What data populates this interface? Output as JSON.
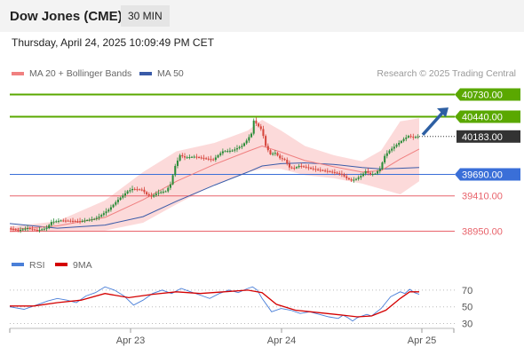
{
  "header": {
    "instrument": "Dow Jones (CME)",
    "timeframe": "30 MIN"
  },
  "datetime": "Thursday, April 24, 2025 10:09:49 PM CET",
  "colors": {
    "bullish": "#2a8c38",
    "bearish": "#d6453b",
    "ma20": "#f08080",
    "bands_fill": "#fcdada",
    "ma50": "#3a5ba8",
    "resistance": "#5aa800",
    "support_blue": "#3a6fd8",
    "support_red": "#e8636b",
    "rsi": "#4a7fd8",
    "rsi_ma": "#d40000",
    "arrow": "#2d5fa3"
  },
  "chart_data": [
    {
      "type": "candlestick",
      "title": "Dow Jones (CME)",
      "attribution": "Research © 2025 Trading Central",
      "legend": [
        {
          "name": "MA 20 + Bollinger Bands",
          "color": "#f08080"
        },
        {
          "name": "MA 50",
          "color": "#3a5ba8"
        }
      ],
      "x_ticks": [
        "Apr 23",
        "Apr 24",
        "Apr 25"
      ],
      "ylim": [
        38760,
        40920
      ],
      "levels": [
        {
          "value": 40730,
          "label": "40730.00",
          "kind": "resistance",
          "color": "#5aa800"
        },
        {
          "value": 40440,
          "label": "40440.00",
          "kind": "resistance",
          "color": "#5aa800"
        },
        {
          "value": 40183,
          "label": "40183.00",
          "kind": "last-price",
          "color": "#333333"
        },
        {
          "value": 39690,
          "label": "39690.00",
          "kind": "pivot",
          "color": "#3a6fd8"
        },
        {
          "value": 39410,
          "label": "39410.00",
          "kind": "support",
          "color": "#e8636b"
        },
        {
          "value": 38950,
          "label": "38950.00",
          "kind": "support",
          "color": "#e8636b"
        }
      ],
      "price_points": [
        [
          0,
          38990
        ],
        [
          4,
          38960
        ],
        [
          8,
          38990
        ],
        [
          12,
          38960
        ],
        [
          16,
          38990
        ],
        [
          18,
          39070
        ],
        [
          22,
          39090
        ],
        [
          30,
          39080
        ],
        [
          36,
          39110
        ],
        [
          38,
          39140
        ],
        [
          42,
          39230
        ],
        [
          46,
          39360
        ],
        [
          50,
          39470
        ],
        [
          52,
          39500
        ],
        [
          56,
          39490
        ],
        [
          58,
          39430
        ],
        [
          60,
          39400
        ],
        [
          62,
          39440
        ],
        [
          64,
          39460
        ],
        [
          66,
          39470
        ],
        [
          68,
          39560
        ],
        [
          70,
          39800
        ],
        [
          72,
          39940
        ],
        [
          74,
          39910
        ],
        [
          78,
          39920
        ],
        [
          82,
          39900
        ],
        [
          86,
          39880
        ],
        [
          88,
          39940
        ],
        [
          90,
          39990
        ],
        [
          94,
          40000
        ],
        [
          96,
          40030
        ],
        [
          98,
          40060
        ],
        [
          100,
          40130
        ],
        [
          102,
          40220
        ],
        [
          103,
          40390
        ],
        [
          104,
          40350
        ],
        [
          106,
          40280
        ],
        [
          107,
          40190
        ],
        [
          108,
          40060
        ],
        [
          110,
          39950
        ],
        [
          112,
          39970
        ],
        [
          114,
          39900
        ],
        [
          116,
          39880
        ],
        [
          118,
          39780
        ],
        [
          120,
          39770
        ],
        [
          122,
          39800
        ],
        [
          124,
          39790
        ],
        [
          128,
          39760
        ],
        [
          132,
          39740
        ],
        [
          136,
          39720
        ],
        [
          140,
          39690
        ],
        [
          142,
          39640
        ],
        [
          144,
          39610
        ],
        [
          146,
          39630
        ],
        [
          148,
          39670
        ],
        [
          150,
          39730
        ],
        [
          152,
          39690
        ],
        [
          154,
          39700
        ],
        [
          156,
          39760
        ],
        [
          158,
          39930
        ],
        [
          160,
          40000
        ],
        [
          162,
          40050
        ],
        [
          164,
          40100
        ],
        [
          166,
          40150
        ],
        [
          168,
          40190
        ],
        [
          170,
          40170
        ],
        [
          172,
          40183
        ]
      ],
      "ma20_points": [
        [
          0,
          38970
        ],
        [
          20,
          39020
        ],
        [
          40,
          39130
        ],
        [
          56,
          39360
        ],
        [
          70,
          39600
        ],
        [
          86,
          39820
        ],
        [
          100,
          39990
        ],
        [
          106,
          40060
        ],
        [
          114,
          39980
        ],
        [
          124,
          39870
        ],
        [
          136,
          39790
        ],
        [
          148,
          39720
        ],
        [
          156,
          39740
        ],
        [
          164,
          39890
        ],
        [
          172,
          40020
        ]
      ],
      "bollinger_upper": [
        [
          0,
          39010
        ],
        [
          20,
          39080
        ],
        [
          40,
          39350
        ],
        [
          56,
          39720
        ],
        [
          70,
          39990
        ],
        [
          86,
          40100
        ],
        [
          100,
          40260
        ],
        [
          106,
          40400
        ],
        [
          114,
          40260
        ],
        [
          124,
          40060
        ],
        [
          136,
          39940
        ],
        [
          148,
          39860
        ],
        [
          156,
          40000
        ],
        [
          164,
          40380
        ],
        [
          172,
          40420
        ]
      ],
      "bollinger_lower": [
        [
          0,
          38930
        ],
        [
          20,
          38960
        ],
        [
          40,
          38960
        ],
        [
          56,
          39060
        ],
        [
          70,
          39300
        ],
        [
          86,
          39560
        ],
        [
          100,
          39720
        ],
        [
          106,
          39760
        ],
        [
          114,
          39760
        ],
        [
          124,
          39680
        ],
        [
          136,
          39640
        ],
        [
          148,
          39570
        ],
        [
          156,
          39500
        ],
        [
          164,
          39430
        ],
        [
          172,
          39600
        ]
      ],
      "ma50_points": [
        [
          0,
          39050
        ],
        [
          20,
          38990
        ],
        [
          40,
          39030
        ],
        [
          56,
          39140
        ],
        [
          70,
          39340
        ],
        [
          86,
          39550
        ],
        [
          100,
          39720
        ],
        [
          106,
          39800
        ],
        [
          114,
          39830
        ],
        [
          124,
          39840
        ],
        [
          136,
          39820
        ],
        [
          148,
          39780
        ],
        [
          156,
          39760
        ],
        [
          164,
          39770
        ],
        [
          172,
          39780
        ]
      ],
      "forecast_arrow": {
        "from": 40183,
        "to": 40560
      }
    },
    {
      "type": "line",
      "title": "RSI",
      "legend": [
        {
          "name": "RSI",
          "color": "#4a7fd8"
        },
        {
          "name": "9MA",
          "color": "#d40000"
        }
      ],
      "y_ticks": [
        70,
        50,
        30
      ],
      "ylim": [
        22,
        88
      ],
      "series": [
        {
          "name": "RSI",
          "values": [
            [
              0,
              50
            ],
            [
              6,
              47
            ],
            [
              12,
              53
            ],
            [
              16,
              57
            ],
            [
              20,
              60
            ],
            [
              24,
              58
            ],
            [
              28,
              55
            ],
            [
              32,
              63
            ],
            [
              36,
              67
            ],
            [
              40,
              74
            ],
            [
              44,
              70
            ],
            [
              48,
              63
            ],
            [
              52,
              52
            ],
            [
              56,
              58
            ],
            [
              60,
              66
            ],
            [
              64,
              70
            ],
            [
              68,
              66
            ],
            [
              72,
              72
            ],
            [
              76,
              68
            ],
            [
              80,
              64
            ],
            [
              84,
              60
            ],
            [
              88,
              66
            ],
            [
              92,
              70
            ],
            [
              96,
              67
            ],
            [
              100,
              72
            ],
            [
              102,
              74
            ],
            [
              104,
              70
            ],
            [
              106,
              60
            ],
            [
              108,
              52
            ],
            [
              110,
              44
            ],
            [
              114,
              48
            ],
            [
              118,
              46
            ],
            [
              122,
              42
            ],
            [
              126,
              44
            ],
            [
              130,
              41
            ],
            [
              134,
              38
            ],
            [
              138,
              36
            ],
            [
              140,
              40
            ],
            [
              142,
              37
            ],
            [
              144,
              33
            ],
            [
              146,
              37
            ],
            [
              150,
              41
            ],
            [
              152,
              39
            ],
            [
              156,
              48
            ],
            [
              160,
              62
            ],
            [
              164,
              68
            ],
            [
              166,
              66
            ],
            [
              168,
              71
            ],
            [
              170,
              67
            ],
            [
              172,
              65
            ]
          ]
        },
        {
          "name": "9MA",
          "values": [
            [
              0,
              51
            ],
            [
              10,
              51
            ],
            [
              20,
              55
            ],
            [
              30,
              58
            ],
            [
              40,
              66
            ],
            [
              50,
              61
            ],
            [
              60,
              65
            ],
            [
              70,
              68
            ],
            [
              80,
              66
            ],
            [
              90,
              68
            ],
            [
              100,
              70
            ],
            [
              106,
              67
            ],
            [
              112,
              53
            ],
            [
              120,
              46
            ],
            [
              130,
              43
            ],
            [
              140,
              40
            ],
            [
              146,
              38
            ],
            [
              152,
              39
            ],
            [
              158,
              46
            ],
            [
              164,
              60
            ],
            [
              168,
              68
            ],
            [
              172,
              68
            ]
          ]
        }
      ]
    }
  ]
}
